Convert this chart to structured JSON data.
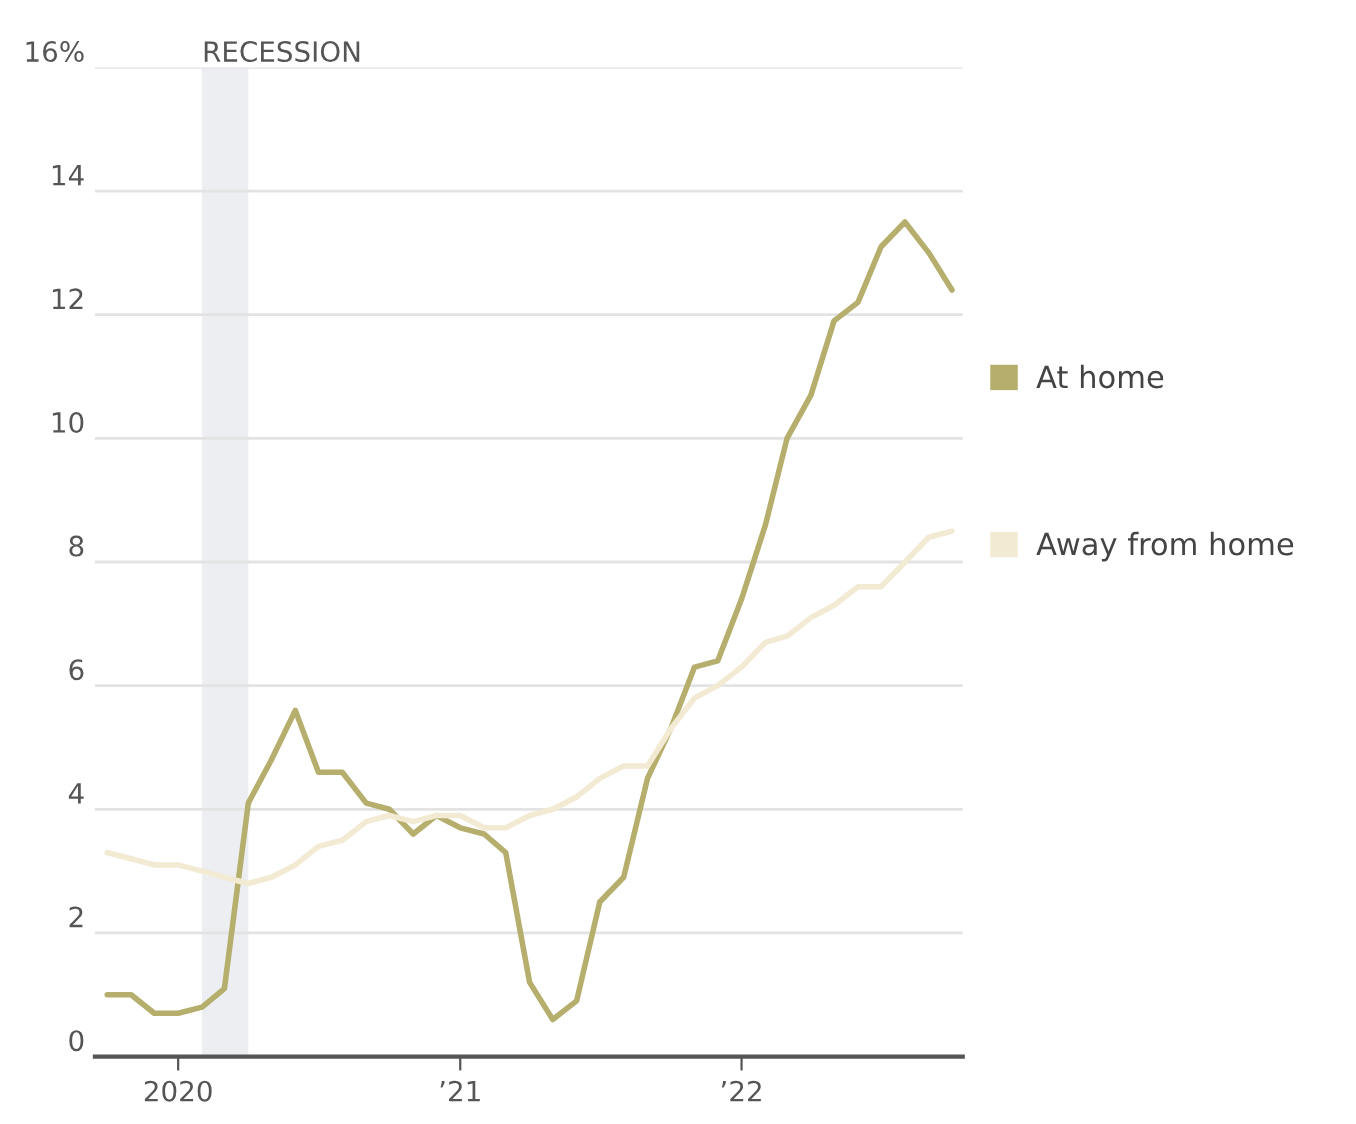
{
  "chart_data": {
    "type": "line",
    "x": [
      "2019-10",
      "2019-11",
      "2019-12",
      "2020-01",
      "2020-02",
      "2020-03",
      "2020-04",
      "2020-05",
      "2020-06",
      "2020-07",
      "2020-08",
      "2020-09",
      "2020-10",
      "2020-11",
      "2020-12",
      "2021-01",
      "2021-02",
      "2021-03",
      "2021-04",
      "2021-05",
      "2021-06",
      "2021-07",
      "2021-08",
      "2021-09",
      "2021-10",
      "2021-11",
      "2021-12",
      "2022-01",
      "2022-02",
      "2022-03",
      "2022-04",
      "2022-05",
      "2022-06",
      "2022-07",
      "2022-08",
      "2022-09",
      "2022-10"
    ],
    "series": [
      {
        "name": "At home",
        "color": "#b5ae6c",
        "values": [
          1.0,
          1.0,
          0.7,
          0.7,
          0.8,
          1.1,
          4.1,
          4.8,
          5.6,
          4.6,
          4.6,
          4.1,
          4.0,
          3.6,
          3.9,
          3.7,
          3.6,
          3.3,
          1.2,
          0.6,
          0.9,
          2.5,
          2.9,
          4.5,
          5.3,
          6.3,
          6.4,
          7.4,
          8.6,
          10.0,
          10.7,
          11.9,
          12.2,
          13.1,
          13.5,
          13.0,
          12.4
        ]
      },
      {
        "name": "Away from home",
        "color": "#f3ead3",
        "values": [
          3.3,
          3.2,
          3.1,
          3.1,
          3.0,
          2.9,
          2.8,
          2.9,
          3.1,
          3.4,
          3.5,
          3.8,
          3.9,
          3.8,
          3.9,
          3.9,
          3.7,
          3.7,
          3.9,
          4.0,
          4.2,
          4.5,
          4.7,
          4.7,
          5.3,
          5.8,
          6.0,
          6.3,
          6.7,
          6.8,
          7.1,
          7.3,
          7.6,
          7.6,
          8.0,
          8.4,
          8.5
        ]
      }
    ],
    "bands": [
      {
        "axis": "x",
        "from": "2020-02",
        "to": "2020-04",
        "label": "RECESSION",
        "color": "#eceef1"
      }
    ],
    "xlim": [
      "2019-09-15",
      "2022-10-15"
    ],
    "xticks": [
      {
        "value": "2020-01",
        "label": "2020"
      },
      {
        "value": "2021-01",
        "label": "’21"
      },
      {
        "value": "2022-01",
        "label": "’22"
      }
    ],
    "ylim": [
      0,
      16
    ],
    "yticks": [
      0,
      2,
      4,
      6,
      8,
      10,
      12,
      14,
      {
        "value": 16,
        "label": "16%"
      }
    ],
    "grid": "y",
    "legend": "right",
    "line_style": "solid",
    "marker": "none"
  }
}
